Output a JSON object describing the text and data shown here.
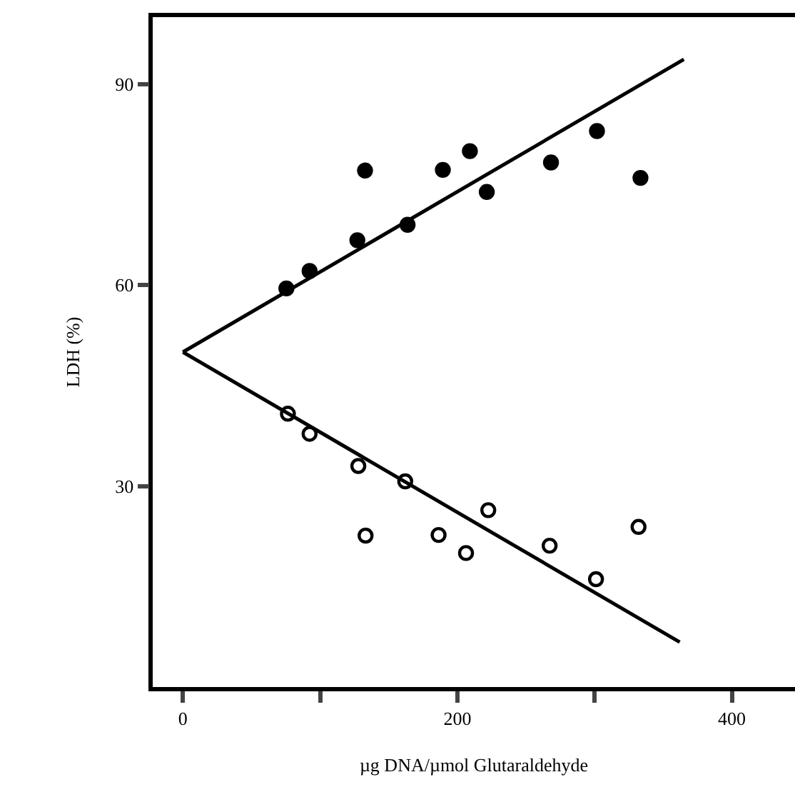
{
  "chart_data": {
    "type": "scatter",
    "xlabel": "µg DNA/µmol Glutaraldehyde",
    "ylabel": "LDH (%)",
    "xlim": [
      -22,
      446
    ],
    "ylim": [
      0,
      100
    ],
    "xticks": [
      0,
      {
        "value": 100,
        "label": null
      },
      200,
      {
        "value": 300,
        "label": null
      },
      400
    ],
    "yticks": [
      30,
      60,
      90
    ],
    "grid": false,
    "series": [
      {
        "marker": "circle",
        "color": "#000000",
        "x": [
          75.4,
          92.3,
          127.1,
          132.7,
          163.7,
          189.4,
          209.1,
          221.4,
          268.2,
          301.7,
          333.4
        ],
        "values": [
          59.5,
          62.1,
          66.7,
          77.1,
          69.0,
          77.2,
          80.0,
          73.9,
          78.3,
          83.0,
          76.0
        ]
      },
      {
        "marker": "circle",
        "color": "#ffffff",
        "x": [
          76.5,
          92.3,
          127.8,
          133.1,
          162,
          186.3,
          206.3,
          222.5,
          267.2,
          301,
          332
        ],
        "values": [
          40.8,
          37.8,
          33.0,
          22.6,
          30.7,
          22.7,
          20.0,
          26.4,
          21.1,
          16.1,
          23.9
        ]
      },
      {
        "type": "line",
        "marker": "none",
        "line_style": "solid",
        "color": "#000000",
        "x": [
          0,
          365
        ],
        "values": [
          50,
          93.7
        ]
      },
      {
        "type": "line",
        "marker": "none",
        "line_style": "solid",
        "color": "#000000",
        "x": [
          0,
          362
        ],
        "values": [
          50,
          6.7
        ]
      }
    ]
  }
}
